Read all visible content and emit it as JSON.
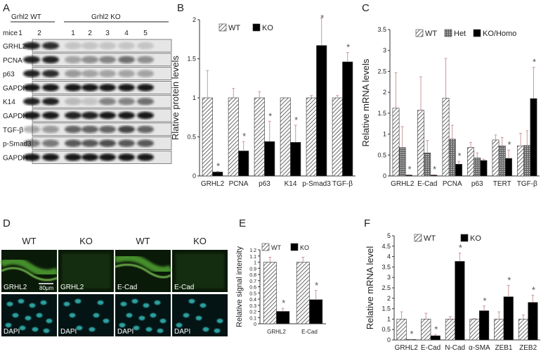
{
  "panels": {
    "A": {
      "label": "A",
      "group_wt": "Grhl2 WT",
      "group_ko": "Grhl2 KO",
      "mice_label": "mice",
      "mice_numbers": [
        "1",
        "2",
        "1",
        "2",
        "3",
        "4",
        "5"
      ],
      "bands": [
        "GRHL2",
        "PCNA",
        "p63",
        "GAPDH",
        "K14",
        "GAPDH",
        "TGF-β",
        "p-Smad3",
        "GAPDH"
      ]
    },
    "B": {
      "label": "B"
    },
    "C": {
      "label": "C"
    },
    "D": {
      "label": "D",
      "col_headers": [
        "WT",
        "KO",
        "WT",
        "KO"
      ],
      "top_tags": [
        "GRHL2",
        "GRHL2",
        "E-Cad",
        "E-Cad"
      ],
      "bottom_tags": [
        "DAPI",
        "DAPI",
        "DAPI",
        "DAPI"
      ],
      "scale_bar": "80μm"
    },
    "E": {
      "label": "E"
    },
    "F": {
      "label": "F"
    }
  },
  "colors": {
    "wt": "#555555",
    "ko": "#000000",
    "error": "#cc9999",
    "star": "#555555"
  },
  "chart_data": [
    {
      "id": "B",
      "type": "bar",
      "ylabel": "Rlative protein levels",
      "ylim": [
        0,
        2
      ],
      "yticks": [
        0,
        0.5,
        1,
        1.5,
        2
      ],
      "ytick_labels": [
        "0",
        "0.5",
        "1",
        "1.5",
        "2"
      ],
      "categories": [
        "GRHL2",
        "PCNA",
        "p63",
        "K14",
        "p-Smad3",
        "TGF-β"
      ],
      "series": [
        {
          "name": "WT",
          "pattern": "hatch",
          "values": [
            1,
            1,
            1,
            1,
            1,
            1
          ],
          "errors": [
            0.35,
            0.12,
            0.08,
            0,
            0.03,
            0.03
          ]
        },
        {
          "name": "KO",
          "pattern": "solid",
          "values": [
            0.05,
            0.32,
            0.44,
            0.43,
            1.67,
            1.46
          ],
          "errors": [
            0.01,
            0.12,
            0.26,
            0.22,
            0.35,
            0.12
          ]
        }
      ],
      "significant": [
        [
          false,
          true
        ],
        [
          false,
          true
        ],
        [
          false,
          true
        ],
        [
          false,
          true
        ],
        [
          false,
          true
        ],
        [
          false,
          true
        ]
      ]
    },
    {
      "id": "C",
      "type": "bar",
      "ylabel": "Relative mRNA levels",
      "ylim": [
        0,
        3.5
      ],
      "yticks": [
        0,
        0.5,
        1,
        1.5,
        2,
        2.5,
        3,
        3.5
      ],
      "ytick_labels": [
        "0",
        "0.5",
        "1",
        "1.5",
        "2",
        "2.5",
        "3",
        "3.5"
      ],
      "categories": [
        "GRHL2",
        "E-Cad",
        "PCNA",
        "p63",
        "TERT",
        "TGF-β"
      ],
      "series": [
        {
          "name": "WT",
          "pattern": "hatch",
          "values": [
            1.62,
            1.57,
            1.86,
            0.68,
            0.86,
            0.72
          ],
          "errors": [
            0.85,
            0.8,
            0.95,
            0.12,
            0.12,
            0.3
          ]
        },
        {
          "name": "Het",
          "pattern": "grid",
          "values": [
            0.68,
            0.55,
            0.88,
            0.43,
            0.72,
            0.73
          ],
          "errors": [
            0.5,
            0.3,
            0.33,
            0.12,
            0.2,
            0.35
          ]
        },
        {
          "name": "KO/Homo",
          "pattern": "solid",
          "values": [
            0.02,
            0.02,
            0.28,
            0.37,
            0.42,
            1.85
          ],
          "errors": [
            0.01,
            0.01,
            0.07,
            0.03,
            0.2,
            0.75
          ]
        }
      ],
      "significant": [
        [
          false,
          false,
          true
        ],
        [
          false,
          false,
          true
        ],
        [
          false,
          false,
          true
        ],
        [
          false,
          false,
          false
        ],
        [
          false,
          false,
          true
        ],
        [
          false,
          false,
          true
        ]
      ]
    },
    {
      "id": "E",
      "type": "bar",
      "ylabel": "Relative signal intensity",
      "ylim": [
        0,
        1.2
      ],
      "yticks": [
        0,
        0.1,
        0.2,
        0.3,
        0.4,
        0.5,
        0.6,
        0.7,
        0.8,
        0.9,
        1,
        1.1,
        1.2
      ],
      "ytick_labels": [
        "0",
        "0.1",
        "0.2",
        "0.3",
        "0.4",
        "0.5",
        "0.6",
        "0.7",
        "0.8",
        "0.9",
        "1",
        "1.1",
        "1.2"
      ],
      "categories": [
        "GRHL2",
        "E-Cad"
      ],
      "series": [
        {
          "name": "WT",
          "pattern": "hatch",
          "values": [
            1,
            1
          ],
          "errors": [
            0.08,
            0.08
          ]
        },
        {
          "name": "KO",
          "pattern": "solid",
          "values": [
            0.2,
            0.39
          ],
          "errors": [
            0.05,
            0.15
          ]
        }
      ],
      "significant": [
        [
          false,
          true
        ],
        [
          false,
          true
        ]
      ]
    },
    {
      "id": "F",
      "type": "bar",
      "ylabel": "Relative mRNA level",
      "ylim": [
        0,
        5
      ],
      "yticks": [
        0,
        0.5,
        1,
        1.5,
        2,
        2.5,
        3,
        3.5,
        4,
        4.5,
        5
      ],
      "ytick_labels": [
        "0",
        "0.5",
        "1",
        "1.5",
        "2",
        "2.5",
        "3",
        "3.5",
        "4",
        "4.5",
        "5"
      ],
      "categories": [
        "GRHL2",
        "E-Cad",
        "N-Cad",
        "α-SMA",
        "ZEB1",
        "ZEB2"
      ],
      "series": [
        {
          "name": "WT",
          "pattern": "hatch",
          "values": [
            1,
            1,
            1,
            1,
            1,
            1
          ],
          "errors": [
            0.35,
            0.28,
            0.12,
            0.03,
            0.35,
            0.2
          ]
        },
        {
          "name": "KO",
          "pattern": "solid",
          "values": [
            0.02,
            0.2,
            3.77,
            1.4,
            2.07,
            1.8
          ],
          "errors": [
            0.01,
            0.05,
            0.4,
            0.23,
            0.55,
            0.35
          ]
        }
      ],
      "significant": [
        [
          false,
          true
        ],
        [
          false,
          true
        ],
        [
          false,
          true
        ],
        [
          false,
          true
        ],
        [
          false,
          true
        ],
        [
          false,
          true
        ]
      ]
    }
  ]
}
